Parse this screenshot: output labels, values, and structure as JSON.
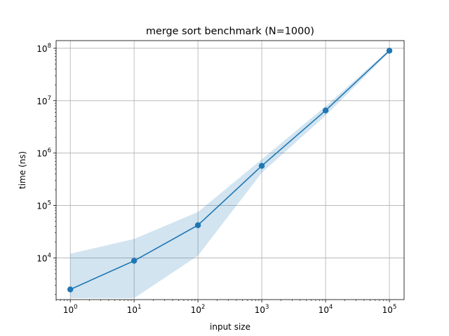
{
  "chart_data": {
    "type": "line",
    "title": "merge sort benchmark (N=1000)",
    "xlabel": "input size",
    "ylabel": "time (ns)",
    "xscale": "log",
    "yscale": "log",
    "xlim": [
      0.6,
      170000
    ],
    "ylim": [
      1600,
      140000000
    ],
    "grid": true,
    "x_ticks": [
      {
        "base": "10",
        "exp": "0",
        "value": 1
      },
      {
        "base": "10",
        "exp": "1",
        "value": 10
      },
      {
        "base": "10",
        "exp": "2",
        "value": 100
      },
      {
        "base": "10",
        "exp": "3",
        "value": 1000
      },
      {
        "base": "10",
        "exp": "4",
        "value": 10000
      },
      {
        "base": "10",
        "exp": "5",
        "value": 100000
      }
    ],
    "y_ticks": [
      {
        "base": "10",
        "exp": "4",
        "value": 10000
      },
      {
        "base": "10",
        "exp": "5",
        "value": 100000
      },
      {
        "base": "10",
        "exp": "6",
        "value": 1000000
      },
      {
        "base": "10",
        "exp": "7",
        "value": 10000000
      },
      {
        "base": "10",
        "exp": "8",
        "value": 100000000
      }
    ],
    "series": [
      {
        "x": [
          1,
          10,
          100,
          1000,
          10000,
          100000
        ],
        "y": [
          2500,
          8800,
          42000,
          570000,
          6500000,
          90000000
        ],
        "band_upper": [
          12000,
          23000,
          75000,
          760000,
          7800000,
          95000000
        ],
        "band_lower": [
          1700,
          1700,
          11000,
          420000,
          5200000,
          85000000
        ],
        "color": "#1f77b4",
        "band_color": "#1f77b4",
        "band_opacity": 0.2
      }
    ]
  }
}
